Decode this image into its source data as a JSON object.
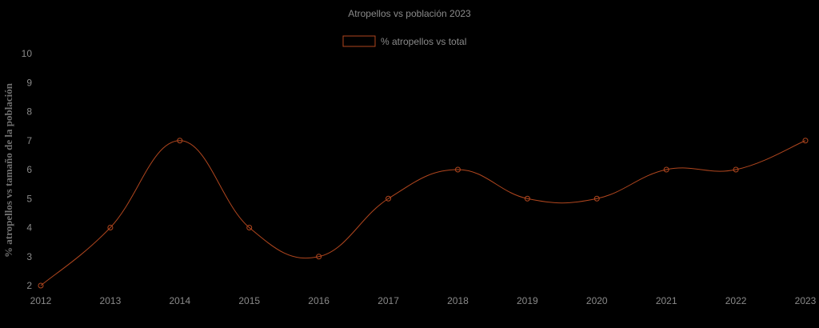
{
  "chart_data": {
    "type": "line",
    "title": "Atropellos vs población 2023",
    "ylabel": "% atropellos vs tamaño de la población",
    "xlabel": "",
    "categories": [
      "2012",
      "2013",
      "2014",
      "2015",
      "2016",
      "2017",
      "2018",
      "2019",
      "2020",
      "2021",
      "2022",
      "2023"
    ],
    "series": [
      {
        "name": "% atropellos vs total",
        "values": [
          2,
          4,
          7,
          4,
          3,
          5,
          6,
          5,
          5,
          6,
          6,
          7
        ],
        "color": "#b0461e"
      }
    ],
    "ylim": [
      2,
      10
    ],
    "yticks": [
      "2",
      "3",
      "4",
      "5",
      "6",
      "7",
      "8",
      "9",
      "10"
    ],
    "grid": false,
    "legend": "top",
    "smooth": true
  }
}
